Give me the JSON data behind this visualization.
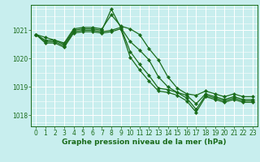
{
  "background_color": "#c8eeee",
  "grid_color": "#ffffff",
  "line_color": "#1a6b1a",
  "marker": "D",
  "marker_size": 2.2,
  "line_width": 0.9,
  "xlabel": "Graphe pression niveau de la mer (hPa)",
  "xlabel_fontsize": 6.5,
  "tick_fontsize": 5.5,
  "ylim": [
    1017.6,
    1021.9
  ],
  "xlim": [
    -0.5,
    23.5
  ],
  "yticks": [
    1018,
    1019,
    1020,
    1021
  ],
  "xticks": [
    0,
    1,
    2,
    3,
    4,
    5,
    6,
    7,
    8,
    9,
    10,
    11,
    12,
    13,
    14,
    15,
    16,
    17,
    18,
    19,
    20,
    21,
    22,
    23
  ],
  "series": [
    [
      1020.85,
      1020.75,
      1020.65,
      1020.55,
      1021.05,
      1021.1,
      1021.1,
      1021.05,
      1021.55,
      1021.15,
      1021.05,
      1020.85,
      1020.35,
      1019.95,
      1019.35,
      1018.95,
      1018.75,
      1018.7,
      1018.85,
      1018.75,
      1018.65,
      1018.75,
      1018.65,
      1018.65
    ],
    [
      1020.85,
      1020.65,
      1020.65,
      1020.5,
      1021.0,
      1021.05,
      1021.05,
      1021.0,
      1021.75,
      1021.1,
      1020.6,
      1020.3,
      1019.95,
      1019.35,
      1019.0,
      1018.8,
      1018.7,
      1018.4,
      1018.75,
      1018.65,
      1018.55,
      1018.65,
      1018.55,
      1018.55
    ],
    [
      1020.85,
      1020.6,
      1020.6,
      1020.45,
      1020.95,
      1021.0,
      1021.0,
      1020.95,
      1021.0,
      1021.1,
      1020.25,
      1019.8,
      1019.4,
      1018.95,
      1018.9,
      1018.8,
      1018.6,
      1018.2,
      1018.7,
      1018.6,
      1018.5,
      1018.6,
      1018.5,
      1018.5
    ],
    [
      1020.85,
      1020.55,
      1020.55,
      1020.4,
      1020.9,
      1020.95,
      1020.95,
      1020.9,
      1020.95,
      1021.05,
      1020.05,
      1019.6,
      1019.2,
      1018.85,
      1018.8,
      1018.7,
      1018.5,
      1018.1,
      1018.65,
      1018.55,
      1018.45,
      1018.55,
      1018.45,
      1018.45
    ]
  ]
}
